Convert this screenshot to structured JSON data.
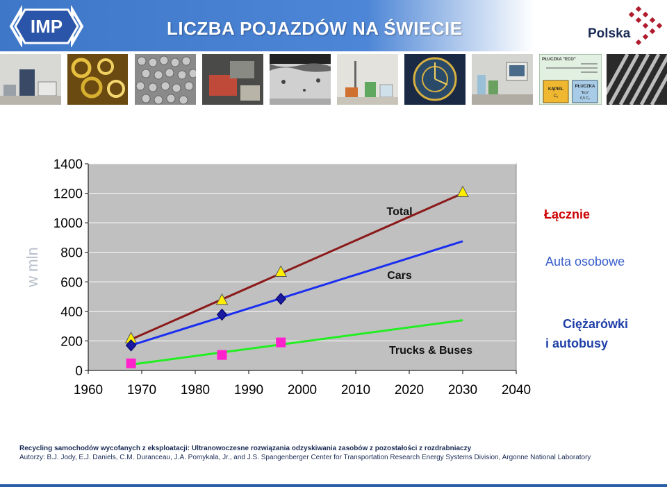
{
  "header": {
    "logo_text": "IMP",
    "title": "LICZBA POJAZDÓW NA ŚWIECIE",
    "country_logo_text": "Polska"
  },
  "thumbnails": {
    "box_title": "PŁUCZKA \"ECO\"",
    "box_left": "KĄPIEL",
    "box_left_sub": "Cₒ",
    "box_right": "PŁUCZKA",
    "box_right_sub": "\"Eco\"",
    "box_right_sub2": "0,5 Cₒ"
  },
  "legend": {
    "total": "Łącznie",
    "cars": "Auta osobowe",
    "trucks_line1": "Ciężarówki",
    "trucks_line2": "i autobusy",
    "total_color": "#cc0000",
    "cars_color": "#3a5fcc",
    "trucks_color": "#1f3fa8"
  },
  "chart_data": {
    "type": "line",
    "ylabel": "w mln",
    "xlim": [
      1960,
      2040
    ],
    "ylim": [
      0,
      1400
    ],
    "xticks": [
      "1960",
      "1970",
      "1980",
      "1990",
      "2000",
      "2010",
      "2020",
      "2030",
      "2040"
    ],
    "yticks": [
      "0",
      "200",
      "400",
      "600",
      "800",
      "1000",
      "1200",
      "1400"
    ],
    "grid": true,
    "series": [
      {
        "name": "Total",
        "color": "#8b1a1a",
        "marker": "triangle",
        "marker_color": "#ffee00",
        "line": [
          [
            1968,
            210
          ],
          [
            2030,
            1200
          ]
        ],
        "points": [
          [
            1968,
            215
          ],
          [
            1985,
            475
          ],
          [
            1996,
            665
          ],
          [
            2030,
            1205
          ]
        ]
      },
      {
        "name": "Cars",
        "color": "#1a2ef0",
        "marker": "diamond",
        "marker_color": "#1a1aa0",
        "line": [
          [
            1968,
            170
          ],
          [
            2030,
            875
          ]
        ],
        "points": [
          [
            1968,
            170
          ],
          [
            1985,
            378
          ],
          [
            1996,
            485
          ]
        ]
      },
      {
        "name": "Trucks & Buses",
        "color": "#22ee22",
        "marker": "square",
        "marker_color": "#ff22cc",
        "line": [
          [
            1968,
            40
          ],
          [
            2030,
            340
          ]
        ],
        "points": [
          [
            1968,
            48
          ],
          [
            1985,
            105
          ],
          [
            1996,
            190
          ]
        ]
      }
    ]
  },
  "footer": {
    "line1": "Recycling samochodów wycofanych z eksploatacji: Ultranowoczesne rozwiązania odzyskiwania zasobów z pozostałości z rozdrabniaczy",
    "line2": "Autorzy: B.J. Jody, E.J. Daniels, C.M. Duranceau, J.A. Pomykala, Jr., and J.S. Spangenberger Center for Transportation Research Energy Systems Division, Argonne National Laboratory"
  }
}
